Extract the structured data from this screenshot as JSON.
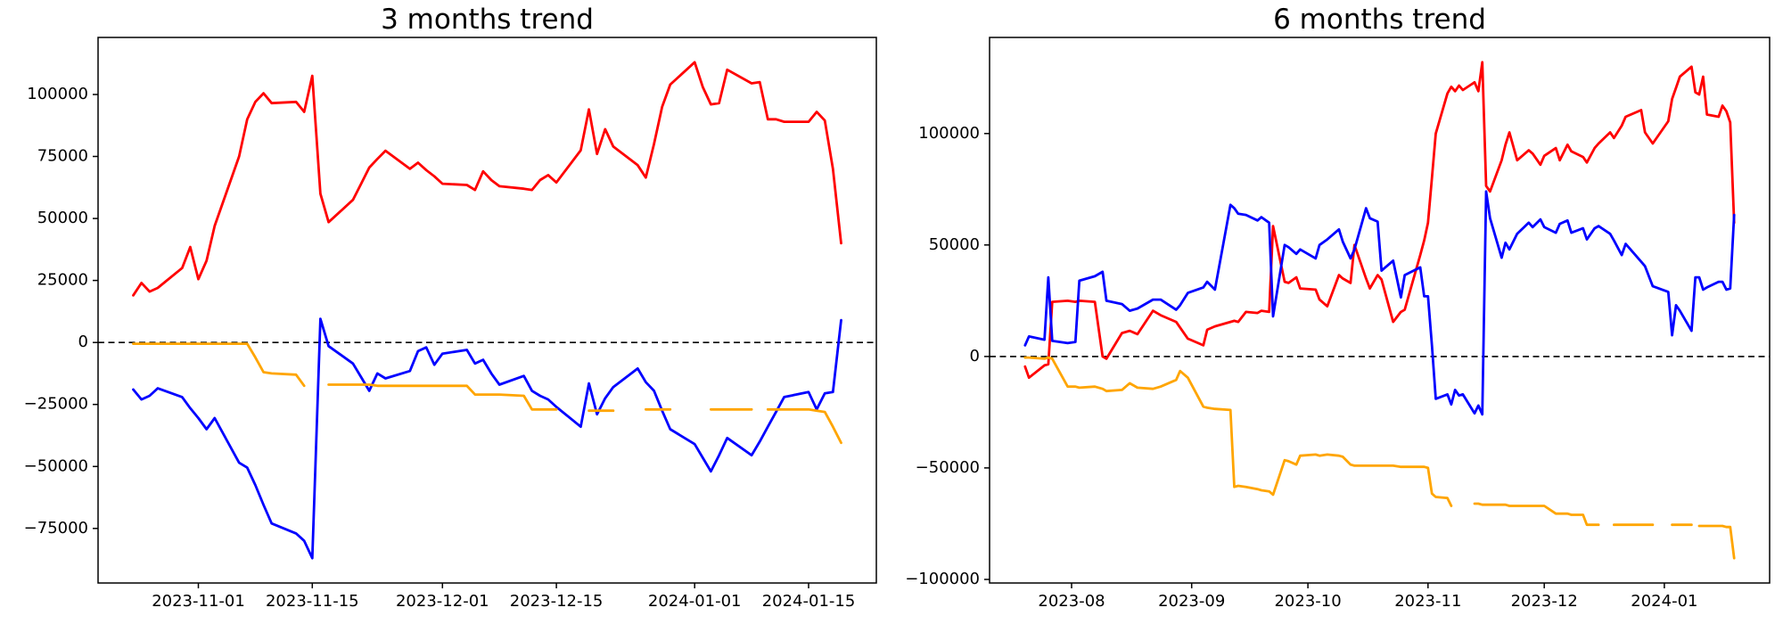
{
  "figure": {
    "background": "#ffffff"
  },
  "chart_data": {
    "type": "line",
    "grid": false,
    "legend": null,
    "zero_line": {
      "style": "dashed",
      "color": "#000000"
    },
    "charts": [
      {
        "title": "3 months trend",
        "type": "line",
        "xlim": [
          "2023-10-19T16:00:00",
          "2024-01-23T08:00:00"
        ],
        "ylim": [
          -97000,
          123000
        ],
        "x_ticks": [
          {
            "label": "2023-11-01",
            "date": "2023-11-01"
          },
          {
            "label": "2023-11-15",
            "date": "2023-11-15"
          },
          {
            "label": "2023-12-01",
            "date": "2023-12-01"
          },
          {
            "label": "2023-12-15",
            "date": "2023-12-15"
          },
          {
            "label": "2024-01-01",
            "date": "2024-01-01"
          },
          {
            "label": "2024-01-15",
            "date": "2024-01-15"
          }
        ],
        "y_ticks": [
          {
            "label": "100000",
            "value": 100000
          },
          {
            "label": "75000",
            "value": 75000
          },
          {
            "label": "50000",
            "value": 50000
          },
          {
            "label": "25000",
            "value": 25000
          },
          {
            "label": "0",
            "value": 0
          },
          {
            "label": "−25000",
            "value": -25000
          },
          {
            "label": "−50000",
            "value": -50000
          },
          {
            "label": "−75000",
            "value": -75000
          }
        ],
        "dates": [
          "2023-10-24",
          "2023-10-25",
          "2023-10-26",
          "2023-10-27",
          "2023-10-30",
          "2023-10-31",
          "2023-11-01",
          "2023-11-02",
          "2023-11-03",
          "2023-11-06",
          "2023-11-07",
          "2023-11-08",
          "2023-11-09",
          "2023-11-10",
          "2023-11-13",
          "2023-11-14",
          "2023-11-15",
          "2023-11-16",
          "2023-11-17",
          "2023-11-20",
          "2023-11-21",
          "2023-11-22",
          "2023-11-23",
          "2023-11-24",
          "2023-11-27",
          "2023-11-28",
          "2023-11-29",
          "2023-11-30",
          "2023-12-01",
          "2023-12-04",
          "2023-12-05",
          "2023-12-06",
          "2023-12-07",
          "2023-12-08",
          "2023-12-11",
          "2023-12-12",
          "2023-12-13",
          "2023-12-14",
          "2023-12-15",
          "2023-12-18",
          "2023-12-19",
          "2023-12-20",
          "2023-12-21",
          "2023-12-22",
          "2023-12-25",
          "2023-12-26",
          "2023-12-27",
          "2023-12-28",
          "2023-12-29",
          "2024-01-01",
          "2024-01-02",
          "2024-01-03",
          "2024-01-04",
          "2024-01-05",
          "2024-01-08",
          "2024-01-09",
          "2024-01-10",
          "2024-01-11",
          "2024-01-12",
          "2024-01-15",
          "2024-01-16",
          "2024-01-17",
          "2024-01-18",
          "2024-01-19"
        ],
        "series": [
          {
            "name": "series-red",
            "color": "#ff0000",
            "values": [
              19000,
              24000,
              20500,
              22000,
              30000,
              38500,
              25500,
              33000,
              47000,
              75000,
              90000,
              97000,
              100500,
              96500,
              97000,
              93000,
              107500,
              60000,
              48500,
              57500,
              64000,
              70500,
              74000,
              77300,
              70000,
              72500,
              69500,
              67000,
              64000,
              63500,
              61500,
              69000,
              65500,
              63000,
              62000,
              61500,
              65500,
              67500,
              64500,
              77500,
              94000,
              76000,
              86000,
              79000,
              71500,
              66500,
              80000,
              95000,
              104000,
              113000,
              103000,
              96000,
              96500,
              110000,
              104500,
              105000,
              90000,
              90000,
              89000,
              89000,
              93000,
              89500,
              70000,
              40000
            ]
          },
          {
            "name": "series-blue",
            "color": "#0000ff",
            "values": [
              -19000,
              -23000,
              -21500,
              -18500,
              -22000,
              -26500,
              -30500,
              -35000,
              -30500,
              -48500,
              -50500,
              -57500,
              -65500,
              -73000,
              -77000,
              -80000,
              -87000,
              9500,
              -1500,
              -8500,
              -14000,
              -19500,
              -12500,
              -14500,
              -11500,
              -3500,
              -2000,
              -9000,
              -4500,
              -3000,
              -8500,
              -7000,
              -12500,
              -17000,
              -13500,
              -19500,
              -21500,
              -23000,
              -26000,
              -34000,
              -16500,
              -29000,
              -22500,
              -18000,
              -10500,
              -16000,
              -19500,
              -27500,
              -35000,
              -41000,
              -46500,
              -52000,
              -45500,
              -38500,
              -45500,
              -40000,
              -34000,
              -28000,
              -22000,
              -20000,
              -27000,
              -20500,
              -20000,
              9000
            ]
          },
          {
            "name": "series-orange",
            "color": "#ffa500",
            "values": [
              -500,
              -500,
              -500,
              -500,
              -500,
              -500,
              -500,
              -500,
              -500,
              -500,
              -500,
              -6000,
              -12000,
              -12500,
              -13000,
              -17500,
              null,
              null,
              -17000,
              -17000,
              -17000,
              -17000,
              -17500,
              -17500,
              -17500,
              -17500,
              -17500,
              -17500,
              -17500,
              -17500,
              -21000,
              -21000,
              -21000,
              -21000,
              -21500,
              -27000,
              -27000,
              -27000,
              -27000,
              null,
              -27500,
              -27500,
              -27500,
              -27500,
              null,
              -27000,
              -27000,
              -27000,
              -27000,
              null,
              null,
              -27000,
              -27000,
              -27000,
              -27000,
              null,
              -27000,
              -27000,
              -27000,
              -27000,
              -27500,
              -28000,
              -34000,
              -40500
            ]
          }
        ]
      },
      {
        "title": "6 months trend",
        "type": "line",
        "xlim": [
          "2023-07-10T20:00:00",
          "2024-01-28T04:00:00"
        ],
        "ylim": [
          -101600,
          143100
        ],
        "x_ticks": [
          {
            "label": "2023-08",
            "date": "2023-08-01"
          },
          {
            "label": "2023-09",
            "date": "2023-09-01"
          },
          {
            "label": "2023-10",
            "date": "2023-10-01"
          },
          {
            "label": "2023-11",
            "date": "2023-11-01"
          },
          {
            "label": "2023-12",
            "date": "2023-12-01"
          },
          {
            "label": "2024-01",
            "date": "2024-01-01"
          }
        ],
        "y_ticks": [
          {
            "label": "100000",
            "value": 100000
          },
          {
            "label": "50000",
            "value": 50000
          },
          {
            "label": "0",
            "value": 0
          },
          {
            "label": "−50000",
            "value": -50000
          },
          {
            "label": "−100000",
            "value": -100000
          }
        ],
        "dates": [
          "2023-07-20",
          "2023-07-21",
          "2023-07-25",
          "2023-07-26",
          "2023-07-27",
          "2023-07-31",
          "2023-08-02",
          "2023-08-03",
          "2023-08-07",
          "2023-08-09",
          "2023-08-10",
          "2023-08-14",
          "2023-08-16",
          "2023-08-18",
          "2023-08-22",
          "2023-08-24",
          "2023-08-28",
          "2023-08-29",
          "2023-08-31",
          "2023-09-04",
          "2023-09-05",
          "2023-09-07",
          "2023-09-11",
          "2023-09-12",
          "2023-09-13",
          "2023-09-15",
          "2023-09-18",
          "2023-09-19",
          "2023-09-21",
          "2023-09-22",
          "2023-09-25",
          "2023-09-26",
          "2023-09-28",
          "2023-09-29",
          "2023-10-03",
          "2023-10-04",
          "2023-10-06",
          "2023-10-09",
          "2023-10-10",
          "2023-10-12",
          "2023-10-13",
          "2023-10-16",
          "2023-10-17",
          "2023-10-19",
          "2023-10-20",
          "2023-10-23",
          "2023-10-25",
          "2023-10-26",
          "2023-10-30",
          "2023-10-31",
          "2023-11-01",
          "2023-11-02",
          "2023-11-03",
          "2023-11-06",
          "2023-11-07",
          "2023-11-08",
          "2023-11-09",
          "2023-11-10",
          "2023-11-13",
          "2023-11-14",
          "2023-11-15",
          "2023-11-16",
          "2023-11-17",
          "2023-11-20",
          "2023-11-21",
          "2023-11-22",
          "2023-11-24",
          "2023-11-27",
          "2023-11-28",
          "2023-11-30",
          "2023-12-01",
          "2023-12-04",
          "2023-12-05",
          "2023-12-07",
          "2023-12-08",
          "2023-12-11",
          "2023-12-12",
          "2023-12-14",
          "2023-12-15",
          "2023-12-18",
          "2023-12-19",
          "2023-12-21",
          "2023-12-22",
          "2023-12-26",
          "2023-12-27",
          "2023-12-29",
          "2024-01-02",
          "2024-01-03",
          "2024-01-04",
          "2024-01-05",
          "2024-01-08",
          "2024-01-09",
          "2024-01-10",
          "2024-01-11",
          "2024-01-12",
          "2024-01-15",
          "2024-01-16",
          "2024-01-17",
          "2024-01-18",
          "2024-01-19"
        ],
        "series": [
          {
            "name": "series-red",
            "color": "#ff0000",
            "values": [
              -4500,
              -9500,
              -4000,
              -3500,
              24500,
              25000,
              24500,
              25000,
              24500,
              0,
              -1000,
              10500,
              11500,
              10000,
              20500,
              18500,
              15500,
              13000,
              8000,
              5000,
              12000,
              13500,
              15500,
              16000,
              15500,
              20000,
              19500,
              20500,
              20000,
              58500,
              33500,
              33000,
              35500,
              30500,
              30000,
              25500,
              22500,
              36500,
              35000,
              33000,
              50000,
              35000,
              30500,
              36500,
              34500,
              15500,
              20000,
              21000,
              45500,
              52000,
              60000,
              80000,
              100000,
              118000,
              121000,
              119000,
              121500,
              119500,
              123000,
              119000,
              132000,
              76500,
              74000,
              88000,
              95000,
              100500,
              88000,
              92500,
              91000,
              86000,
              90000,
              93500,
              88000,
              95000,
              92000,
              89500,
              87000,
              93500,
              95500,
              100500,
              98000,
              103500,
              107500,
              110500,
              100500,
              95500,
              105500,
              115500,
              120500,
              125500,
              130000,
              118500,
              117500,
              125500,
              108500,
              107500,
              112500,
              110000,
              105000,
              60000
            ]
          },
          {
            "name": "series-blue",
            "color": "#0000ff",
            "values": [
              5000,
              9000,
              7500,
              35500,
              7000,
              6000,
              6500,
              34000,
              36000,
              38000,
              25000,
              23500,
              20500,
              21500,
              25500,
              25500,
              21000,
              23000,
              28500,
              31000,
              33500,
              30000,
              68000,
              66500,
              64000,
              63500,
              61000,
              62500,
              60000,
              18000,
              50000,
              49000,
              46000,
              48000,
              44000,
              50000,
              52500,
              57000,
              51500,
              44000,
              48000,
              66500,
              62000,
              60500,
              38500,
              43000,
              26500,
              36500,
              40000,
              27000,
              27000,
              5000,
              -19000,
              -17000,
              -21500,
              -15000,
              -17500,
              -17000,
              -25500,
              -22000,
              -26000,
              74000,
              62000,
              44300,
              51000,
              48000,
              55000,
              60000,
              58000,
              61500,
              58000,
              55500,
              59500,
              61000,
              55500,
              57500,
              52500,
              57500,
              58500,
              55000,
              52000,
              45500,
              50500,
              42500,
              40500,
              31500,
              29000,
              9500,
              23000,
              20500,
              11500,
              35500,
              35500,
              30000,
              31000,
              33500,
              33500,
              30000,
              30500,
              63500
            ]
          },
          {
            "name": "series-orange",
            "color": "#ffa500",
            "values": [
              -500,
              -500,
              -1000,
              -500,
              -1000,
              -13500,
              -13500,
              -14000,
              -13500,
              -14500,
              -15500,
              -15000,
              -12000,
              -14000,
              -14500,
              -13500,
              -10500,
              -6500,
              -9500,
              -22500,
              -23000,
              -23500,
              -24000,
              -58500,
              -58000,
              -58500,
              -59500,
              -60000,
              -60500,
              -62000,
              -46500,
              -47000,
              -48500,
              -44500,
              -44000,
              -44500,
              -44000,
              -44500,
              -45000,
              -48500,
              -49000,
              -49000,
              -49000,
              -49000,
              -49000,
              -49000,
              -49500,
              -49500,
              -49500,
              -49500,
              -50000,
              -61500,
              -63000,
              -63500,
              -67000,
              null,
              null,
              null,
              -66000,
              -66000,
              -66500,
              -66500,
              -66500,
              -66500,
              -66500,
              -67000,
              -67000,
              -67000,
              -67000,
              -67000,
              -67000,
              -70500,
              -70500,
              -70500,
              -71000,
              -71000,
              -75500,
              -75500,
              -75500,
              null,
              -75500,
              -75500,
              -75500,
              -75500,
              -75500,
              -75500,
              null,
              -75500,
              -75500,
              -75500,
              -75500,
              null,
              -76000,
              -76000,
              -76000,
              -76000,
              -76000,
              -76500,
              -76500,
              -90500
            ]
          }
        ]
      }
    ]
  }
}
